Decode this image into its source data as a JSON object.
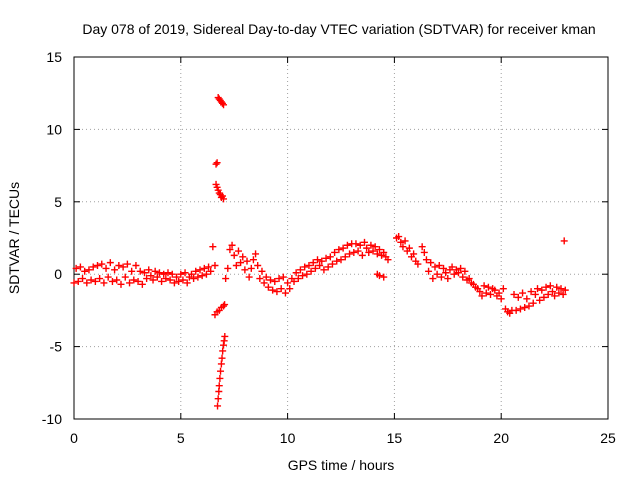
{
  "chart_data": {
    "type": "scatter",
    "title": "Day 078 of 2019, Sidereal Day-to-day VTEC variation (SDTVAR) for receiver kman",
    "xlabel": "GPS time / hours",
    "ylabel": "SDTVAR / TECUs",
    "xlim": [
      0,
      25
    ],
    "ylim": [
      -10,
      15
    ],
    "xticks": [
      0,
      5,
      10,
      15,
      20,
      25
    ],
    "yticks": [
      -10,
      -5,
      0,
      5,
      10,
      15
    ],
    "grid": true,
    "marker": "+",
    "color": "#ff0000",
    "series": [
      {
        "name": "SDTVAR",
        "points": [
          [
            0.0,
            -0.6
          ],
          [
            0.1,
            0.4
          ],
          [
            0.2,
            -0.5
          ],
          [
            0.3,
            0.5
          ],
          [
            0.4,
            -0.3
          ],
          [
            0.5,
            0.2
          ],
          [
            0.6,
            -0.6
          ],
          [
            0.7,
            0.3
          ],
          [
            0.8,
            -0.4
          ],
          [
            0.9,
            0.5
          ],
          [
            1.0,
            -0.5
          ],
          [
            1.1,
            0.6
          ],
          [
            1.2,
            -0.3
          ],
          [
            1.3,
            0.7
          ],
          [
            1.4,
            -0.6
          ],
          [
            1.5,
            0.4
          ],
          [
            1.6,
            -0.2
          ],
          [
            1.7,
            0.8
          ],
          [
            1.8,
            -0.5
          ],
          [
            1.9,
            0.3
          ],
          [
            2.0,
            -0.4
          ],
          [
            2.1,
            0.6
          ],
          [
            2.2,
            -0.7
          ],
          [
            2.3,
            0.5
          ],
          [
            2.4,
            -0.2
          ],
          [
            2.5,
            0.7
          ],
          [
            2.6,
            -0.6
          ],
          [
            2.7,
            0.2
          ],
          [
            2.8,
            -0.4
          ],
          [
            2.9,
            0.6
          ],
          [
            3.0,
            -0.5
          ],
          [
            3.1,
            0.2
          ],
          [
            3.2,
            -0.7
          ],
          [
            3.3,
            0.1
          ],
          [
            3.4,
            -0.3
          ],
          [
            3.5,
            0.3
          ],
          [
            3.6,
            -0.1
          ],
          [
            3.7,
            -0.4
          ],
          [
            3.8,
            0.2
          ],
          [
            3.9,
            -0.2
          ],
          [
            4.0,
            0.1
          ],
          [
            4.1,
            -0.5
          ],
          [
            4.2,
            0.0
          ],
          [
            4.3,
            -0.3
          ],
          [
            4.4,
            0.1
          ],
          [
            4.5,
            -0.4
          ],
          [
            4.6,
            0.0
          ],
          [
            4.7,
            -0.6
          ],
          [
            4.8,
            -0.2
          ],
          [
            4.9,
            -0.5
          ],
          [
            5.0,
            0.0
          ],
          [
            5.1,
            -0.4
          ],
          [
            5.2,
            0.1
          ],
          [
            5.3,
            -0.6
          ],
          [
            5.4,
            -0.2
          ],
          [
            5.5,
            0.0
          ],
          [
            5.6,
            -0.3
          ],
          [
            5.7,
            0.2
          ],
          [
            5.8,
            -0.2
          ],
          [
            5.9,
            0.3
          ],
          [
            6.0,
            -0.1
          ],
          [
            6.1,
            0.4
          ],
          [
            6.2,
            0.0
          ],
          [
            6.3,
            0.5
          ],
          [
            6.4,
            0.2
          ],
          [
            6.5,
            1.9
          ],
          [
            6.6,
            0.6
          ],
          [
            6.65,
            7.6
          ],
          [
            6.7,
            7.7
          ],
          [
            6.65,
            6.2
          ],
          [
            6.7,
            6.0
          ],
          [
            6.75,
            5.8
          ],
          [
            6.8,
            5.6
          ],
          [
            6.85,
            5.5
          ],
          [
            6.9,
            5.3
          ],
          [
            6.95,
            5.4
          ],
          [
            7.0,
            5.2
          ],
          [
            6.75,
            12.2
          ],
          [
            6.8,
            12.1
          ],
          [
            6.85,
            12.0
          ],
          [
            6.9,
            11.9
          ],
          [
            6.95,
            11.8
          ],
          [
            7.0,
            11.7
          ],
          [
            6.6,
            -2.8
          ],
          [
            6.7,
            -2.6
          ],
          [
            6.8,
            -2.5
          ],
          [
            6.9,
            -2.3
          ],
          [
            7.0,
            -2.2
          ],
          [
            7.05,
            -2.1
          ],
          [
            6.72,
            -9.1
          ],
          [
            6.75,
            -8.6
          ],
          [
            6.78,
            -8.1
          ],
          [
            6.8,
            -7.7
          ],
          [
            6.83,
            -7.2
          ],
          [
            6.86,
            -6.7
          ],
          [
            6.9,
            -6.2
          ],
          [
            6.93,
            -5.8
          ],
          [
            6.96,
            -5.3
          ],
          [
            7.0,
            -4.9
          ],
          [
            7.03,
            -4.6
          ],
          [
            7.06,
            -4.3
          ],
          [
            7.1,
            -0.3
          ],
          [
            7.2,
            0.4
          ],
          [
            7.3,
            1.7
          ],
          [
            7.4,
            2.0
          ],
          [
            7.5,
            1.3
          ],
          [
            7.6,
            0.6
          ],
          [
            7.7,
            1.6
          ],
          [
            7.8,
            0.8
          ],
          [
            7.9,
            1.2
          ],
          [
            8.0,
            0.3
          ],
          [
            8.1,
            0.9
          ],
          [
            8.2,
            -0.2
          ],
          [
            8.3,
            0.4
          ],
          [
            8.4,
            1.0
          ],
          [
            8.5,
            1.4
          ],
          [
            8.6,
            0.6
          ],
          [
            8.7,
            -0.3
          ],
          [
            8.8,
            0.2
          ],
          [
            8.9,
            -0.6
          ],
          [
            9.0,
            -0.2
          ],
          [
            9.1,
            -0.9
          ],
          [
            9.2,
            -0.4
          ],
          [
            9.3,
            -1.1
          ],
          [
            9.4,
            -0.5
          ],
          [
            9.5,
            -1.2
          ],
          [
            9.6,
            -0.3
          ],
          [
            9.7,
            -1.0
          ],
          [
            9.8,
            -0.2
          ],
          [
            9.9,
            -1.3
          ],
          [
            10.0,
            -0.6
          ],
          [
            10.1,
            -1.0
          ],
          [
            10.2,
            -0.3
          ],
          [
            10.3,
            -0.5
          ],
          [
            10.4,
            0.1
          ],
          [
            10.5,
            -0.3
          ],
          [
            10.6,
            0.3
          ],
          [
            10.7,
            -0.1
          ],
          [
            10.8,
            0.5
          ],
          [
            10.9,
            0.0
          ],
          [
            11.0,
            0.6
          ],
          [
            11.1,
            0.2
          ],
          [
            11.2,
            0.8
          ],
          [
            11.3,
            0.4
          ],
          [
            11.4,
            1.0
          ],
          [
            11.5,
            0.6
          ],
          [
            11.6,
            0.9
          ],
          [
            11.7,
            0.3
          ],
          [
            11.8,
            1.1
          ],
          [
            11.9,
            0.5
          ],
          [
            12.0,
            1.2
          ],
          [
            12.1,
            0.7
          ],
          [
            12.2,
            1.5
          ],
          [
            12.3,
            0.9
          ],
          [
            12.4,
            1.7
          ],
          [
            12.5,
            1.0
          ],
          [
            12.6,
            1.8
          ],
          [
            12.7,
            1.2
          ],
          [
            12.8,
            2.0
          ],
          [
            12.9,
            1.4
          ],
          [
            13.0,
            2.1
          ],
          [
            13.1,
            1.5
          ],
          [
            13.2,
            2.1
          ],
          [
            13.3,
            1.6
          ],
          [
            13.4,
            2.0
          ],
          [
            13.5,
            1.3
          ],
          [
            13.6,
            2.2
          ],
          [
            13.7,
            1.8
          ],
          [
            13.8,
            1.5
          ],
          [
            13.9,
            2.0
          ],
          [
            14.0,
            1.6
          ],
          [
            14.1,
            1.9
          ],
          [
            14.2,
            1.4
          ],
          [
            14.3,
            1.7
          ],
          [
            14.4,
            1.3
          ],
          [
            14.5,
            1.5
          ],
          [
            14.6,
            1.2
          ],
          [
            14.7,
            1.0
          ],
          [
            14.2,
            0.0
          ],
          [
            14.3,
            -0.1
          ],
          [
            14.5,
            -0.2
          ],
          [
            15.1,
            2.5
          ],
          [
            15.2,
            2.6
          ],
          [
            15.3,
            2.2
          ],
          [
            15.4,
            1.9
          ],
          [
            15.5,
            2.3
          ],
          [
            15.6,
            1.6
          ],
          [
            15.7,
            1.8
          ],
          [
            15.8,
            1.2
          ],
          [
            15.9,
            1.4
          ],
          [
            16.0,
            0.9
          ],
          [
            16.1,
            0.7
          ],
          [
            16.3,
            1.9
          ],
          [
            16.4,
            1.5
          ],
          [
            16.5,
            1.0
          ],
          [
            16.6,
            0.2
          ],
          [
            16.7,
            0.8
          ],
          [
            16.8,
            -0.3
          ],
          [
            16.9,
            0.5
          ],
          [
            17.0,
            0.0
          ],
          [
            17.1,
            0.6
          ],
          [
            17.2,
            -0.2
          ],
          [
            17.3,
            0.4
          ],
          [
            17.4,
            0.1
          ],
          [
            17.5,
            -0.3
          ],
          [
            17.6,
            0.3
          ],
          [
            17.7,
            0.5
          ],
          [
            17.8,
            0.0
          ],
          [
            17.9,
            0.3
          ],
          [
            18.0,
            0.1
          ],
          [
            18.1,
            0.4
          ],
          [
            18.2,
            -0.2
          ],
          [
            18.3,
            0.2
          ],
          [
            18.4,
            -0.4
          ],
          [
            18.5,
            -0.3
          ],
          [
            18.6,
            -0.6
          ],
          [
            18.7,
            -0.7
          ],
          [
            18.8,
            -0.9
          ],
          [
            18.9,
            -1.0
          ],
          [
            19.0,
            -1.2
          ],
          [
            19.1,
            -1.5
          ],
          [
            19.2,
            -0.8
          ],
          [
            19.3,
            -1.3
          ],
          [
            19.4,
            -0.9
          ],
          [
            19.5,
            -1.4
          ],
          [
            19.6,
            -1.0
          ],
          [
            19.7,
            -1.1
          ],
          [
            19.8,
            -1.5
          ],
          [
            19.9,
            -1.3
          ],
          [
            20.0,
            -1.7
          ],
          [
            20.1,
            -1.0
          ],
          [
            20.2,
            -2.4
          ],
          [
            20.3,
            -2.6
          ],
          [
            20.4,
            -2.7
          ],
          [
            20.5,
            -2.5
          ],
          [
            20.6,
            -1.4
          ],
          [
            20.7,
            -2.5
          ],
          [
            20.8,
            -1.6
          ],
          [
            20.9,
            -2.4
          ],
          [
            21.0,
            -1.3
          ],
          [
            21.1,
            -2.3
          ],
          [
            21.2,
            -1.7
          ],
          [
            21.3,
            -2.2
          ],
          [
            21.4,
            -1.2
          ],
          [
            21.5,
            -2.0
          ],
          [
            21.6,
            -1.4
          ],
          [
            21.7,
            -1.0
          ],
          [
            21.8,
            -1.8
          ],
          [
            21.9,
            -1.1
          ],
          [
            22.0,
            -1.6
          ],
          [
            22.1,
            -0.9
          ],
          [
            22.2,
            -1.4
          ],
          [
            22.3,
            -0.8
          ],
          [
            22.4,
            -1.2
          ],
          [
            22.5,
            -1.5
          ],
          [
            22.6,
            -0.9
          ],
          [
            22.7,
            -1.3
          ],
          [
            22.8,
            -1.0
          ],
          [
            22.9,
            -1.4
          ],
          [
            23.0,
            -1.1
          ],
          [
            22.95,
            2.3
          ]
        ]
      }
    ]
  }
}
